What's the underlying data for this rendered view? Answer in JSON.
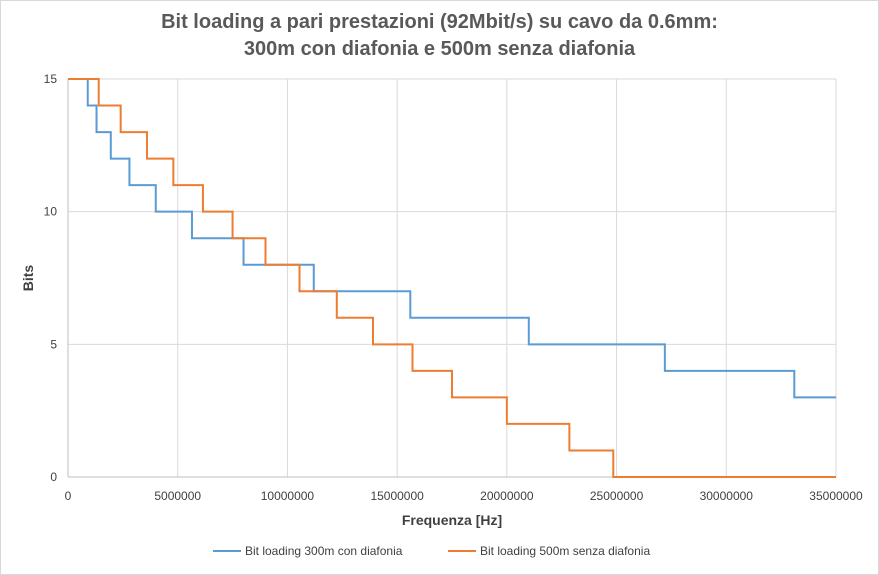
{
  "chart_data": {
    "type": "line",
    "title_lines": [
      "Bit loading a pari prestazioni (92Mbit/s) su cavo da 0.6mm:",
      "300m con diafonia e 500m senza diafonia"
    ],
    "xlabel": "Frequenza [Hz]",
    "ylabel": "Bits",
    "xlim": [
      0,
      35000000
    ],
    "ylim": [
      0,
      15
    ],
    "x_ticks": [
      0,
      5000000,
      10000000,
      15000000,
      20000000,
      25000000,
      30000000,
      35000000
    ],
    "x_tick_labels": [
      "0",
      "5000000",
      "10000000",
      "15000000",
      "20000000",
      "25000000",
      "30000000",
      "35000000"
    ],
    "y_ticks": [
      0,
      5,
      10,
      15
    ],
    "y_tick_labels": [
      "0",
      "5",
      "10",
      "15"
    ],
    "grid": true,
    "legend_position": "bottom",
    "series": [
      {
        "name": "Bit loading 300m con diafonia",
        "color": "#5b9bd5",
        "steps": [
          [
            0,
            15
          ],
          [
            900000,
            14
          ],
          [
            1300000,
            13
          ],
          [
            1950000,
            12
          ],
          [
            2800000,
            11
          ],
          [
            4000000,
            10
          ],
          [
            5650000,
            9
          ],
          [
            8000000,
            8
          ],
          [
            11200000,
            7
          ],
          [
            15600000,
            6
          ],
          [
            21000000,
            5
          ],
          [
            27200000,
            4
          ],
          [
            33100000,
            3
          ]
        ]
      },
      {
        "name": "Bit loading 500m senza diafonia",
        "color": "#ed7d31",
        "steps": [
          [
            0,
            15
          ],
          [
            1400000,
            14
          ],
          [
            2400000,
            13
          ],
          [
            3600000,
            12
          ],
          [
            4800000,
            11
          ],
          [
            6150000,
            10
          ],
          [
            7500000,
            9
          ],
          [
            9000000,
            8
          ],
          [
            10550000,
            7
          ],
          [
            12250000,
            6
          ],
          [
            13900000,
            5
          ],
          [
            15700000,
            4
          ],
          [
            17500000,
            3
          ],
          [
            20000000,
            2
          ],
          [
            22850000,
            1
          ],
          [
            24850000,
            0
          ]
        ]
      }
    ]
  }
}
